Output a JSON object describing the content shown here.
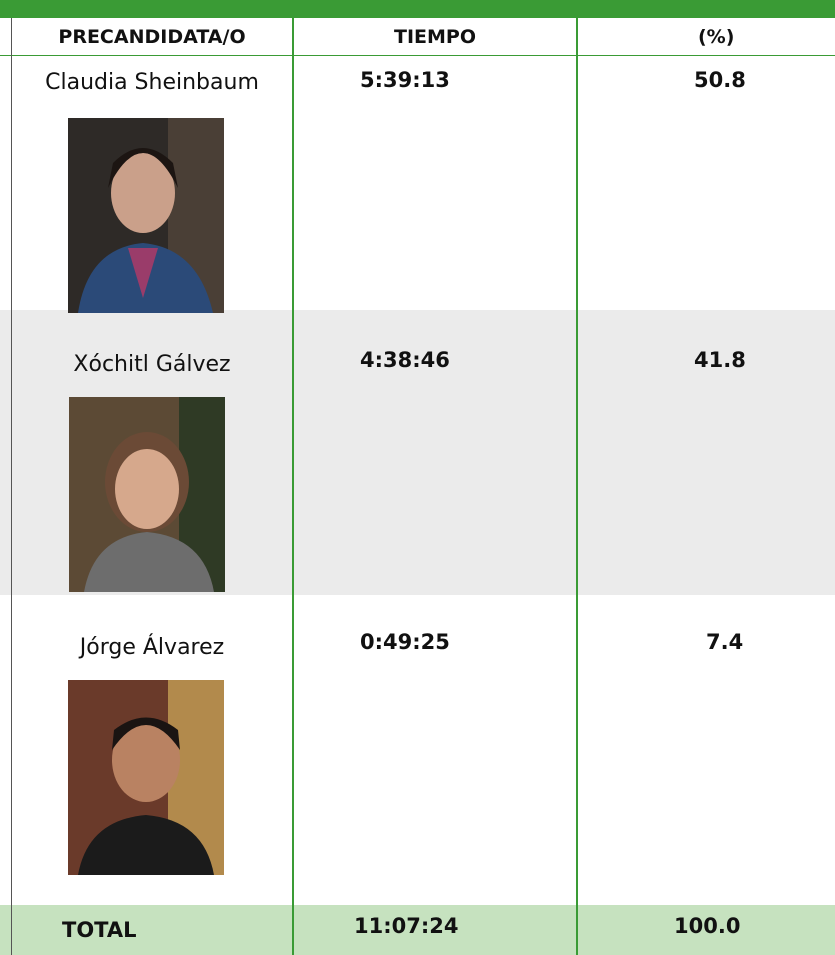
{
  "table": {
    "header": [
      "PRECANDIDATA/O",
      "TIEMPO",
      "(%)"
    ],
    "rows": [
      [
        "Claudia Sheinbaum",
        "5:39:13",
        "50.8"
      ],
      [
        "Xóchitl Gálvez",
        "4:38:46",
        "41.8"
      ],
      [
        "Jórge Álvarez",
        "0:49:25",
        "7.4"
      ]
    ],
    "total": [
      "TOTAL",
      "11:07:24",
      "100.0"
    ]
  }
}
